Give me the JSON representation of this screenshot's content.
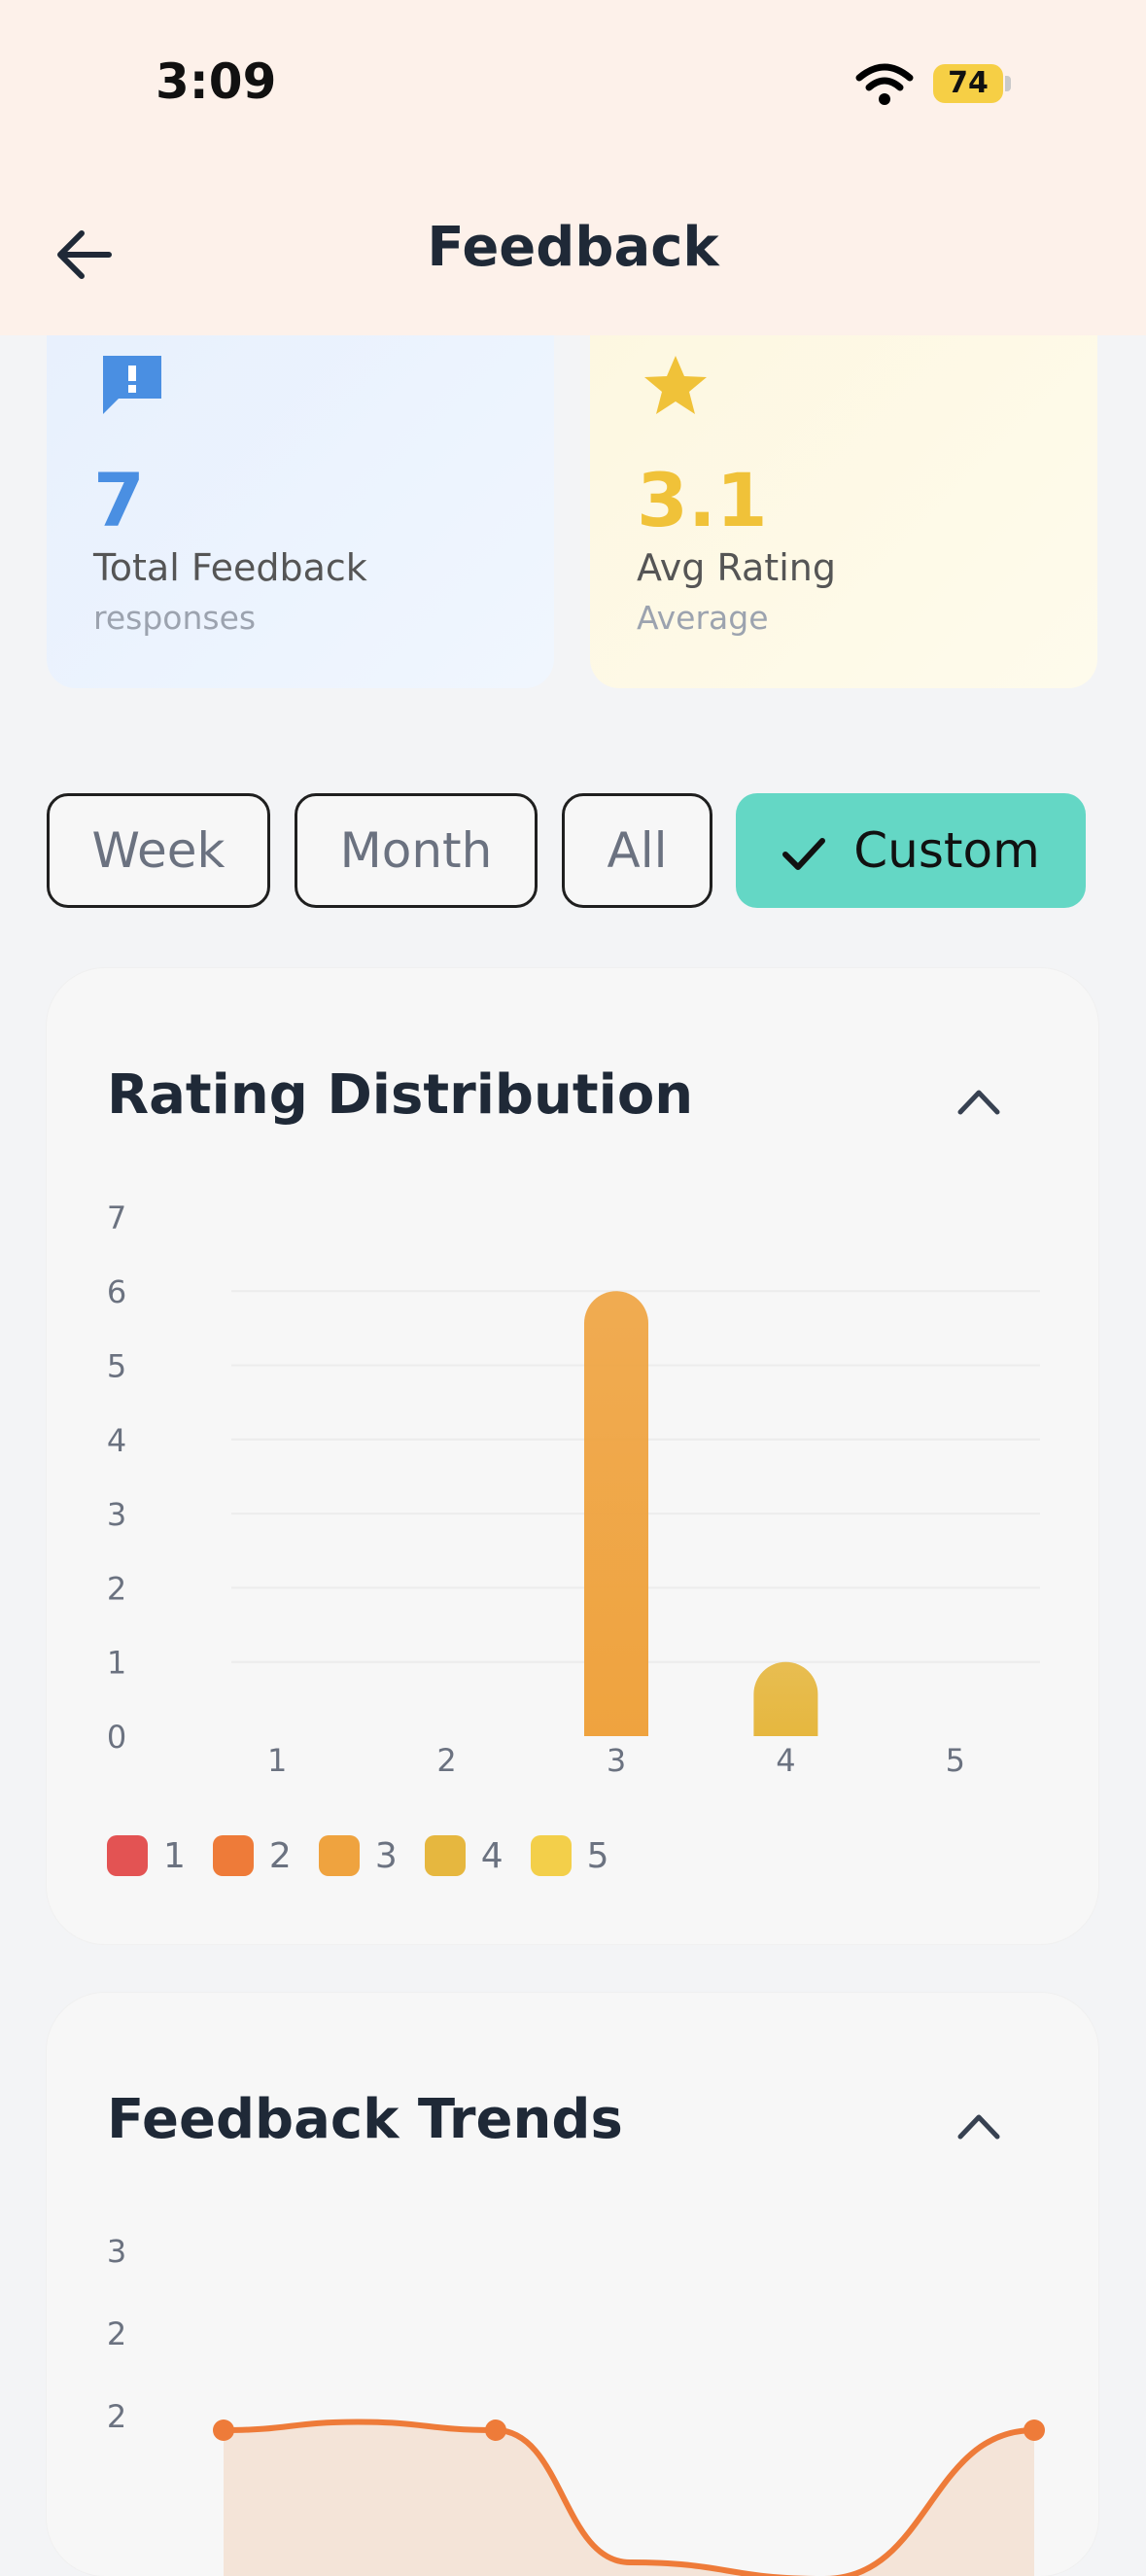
{
  "status": {
    "time": "3:09",
    "battery": "74"
  },
  "header": {
    "title": "Feedback"
  },
  "stats": {
    "total": {
      "value": "7",
      "label": "Total Feedback",
      "sub": "responses"
    },
    "avg": {
      "value": "3.1",
      "label": "Avg Rating",
      "sub": "Average"
    }
  },
  "filters": [
    "Week",
    "Month",
    "All",
    "Custom"
  ],
  "active_filter": "Custom",
  "rating_panel": {
    "title": "Rating Distribution"
  },
  "trends_panel": {
    "title": "Feedback Trends"
  },
  "colors": {
    "rating1": "#e35353",
    "rating2": "#ee7b39",
    "rating3": "#efa33f",
    "rating4": "#e6b73f",
    "rating5": "#f3cf4a",
    "accent": "#64d7c5",
    "trend": "#ee7b39"
  },
  "chart_data": [
    {
      "type": "bar",
      "title": "Rating Distribution",
      "categories": [
        "1",
        "2",
        "3",
        "4",
        "5"
      ],
      "values": [
        0,
        0,
        6,
        1,
        0
      ],
      "yticks": [
        "0",
        "1",
        "2",
        "3",
        "4",
        "5",
        "6",
        "7"
      ],
      "ylim": [
        0,
        7
      ],
      "legend": [
        "1",
        "2",
        "3",
        "4",
        "5"
      ],
      "legend_position": "bottom"
    },
    {
      "type": "area",
      "title": "Feedback Trends",
      "yticks": [
        "3",
        "2",
        "2"
      ],
      "series": [
        {
          "values": [
            2,
            2.05,
            2,
            1.2,
            1.1,
            2
          ]
        }
      ]
    }
  ]
}
